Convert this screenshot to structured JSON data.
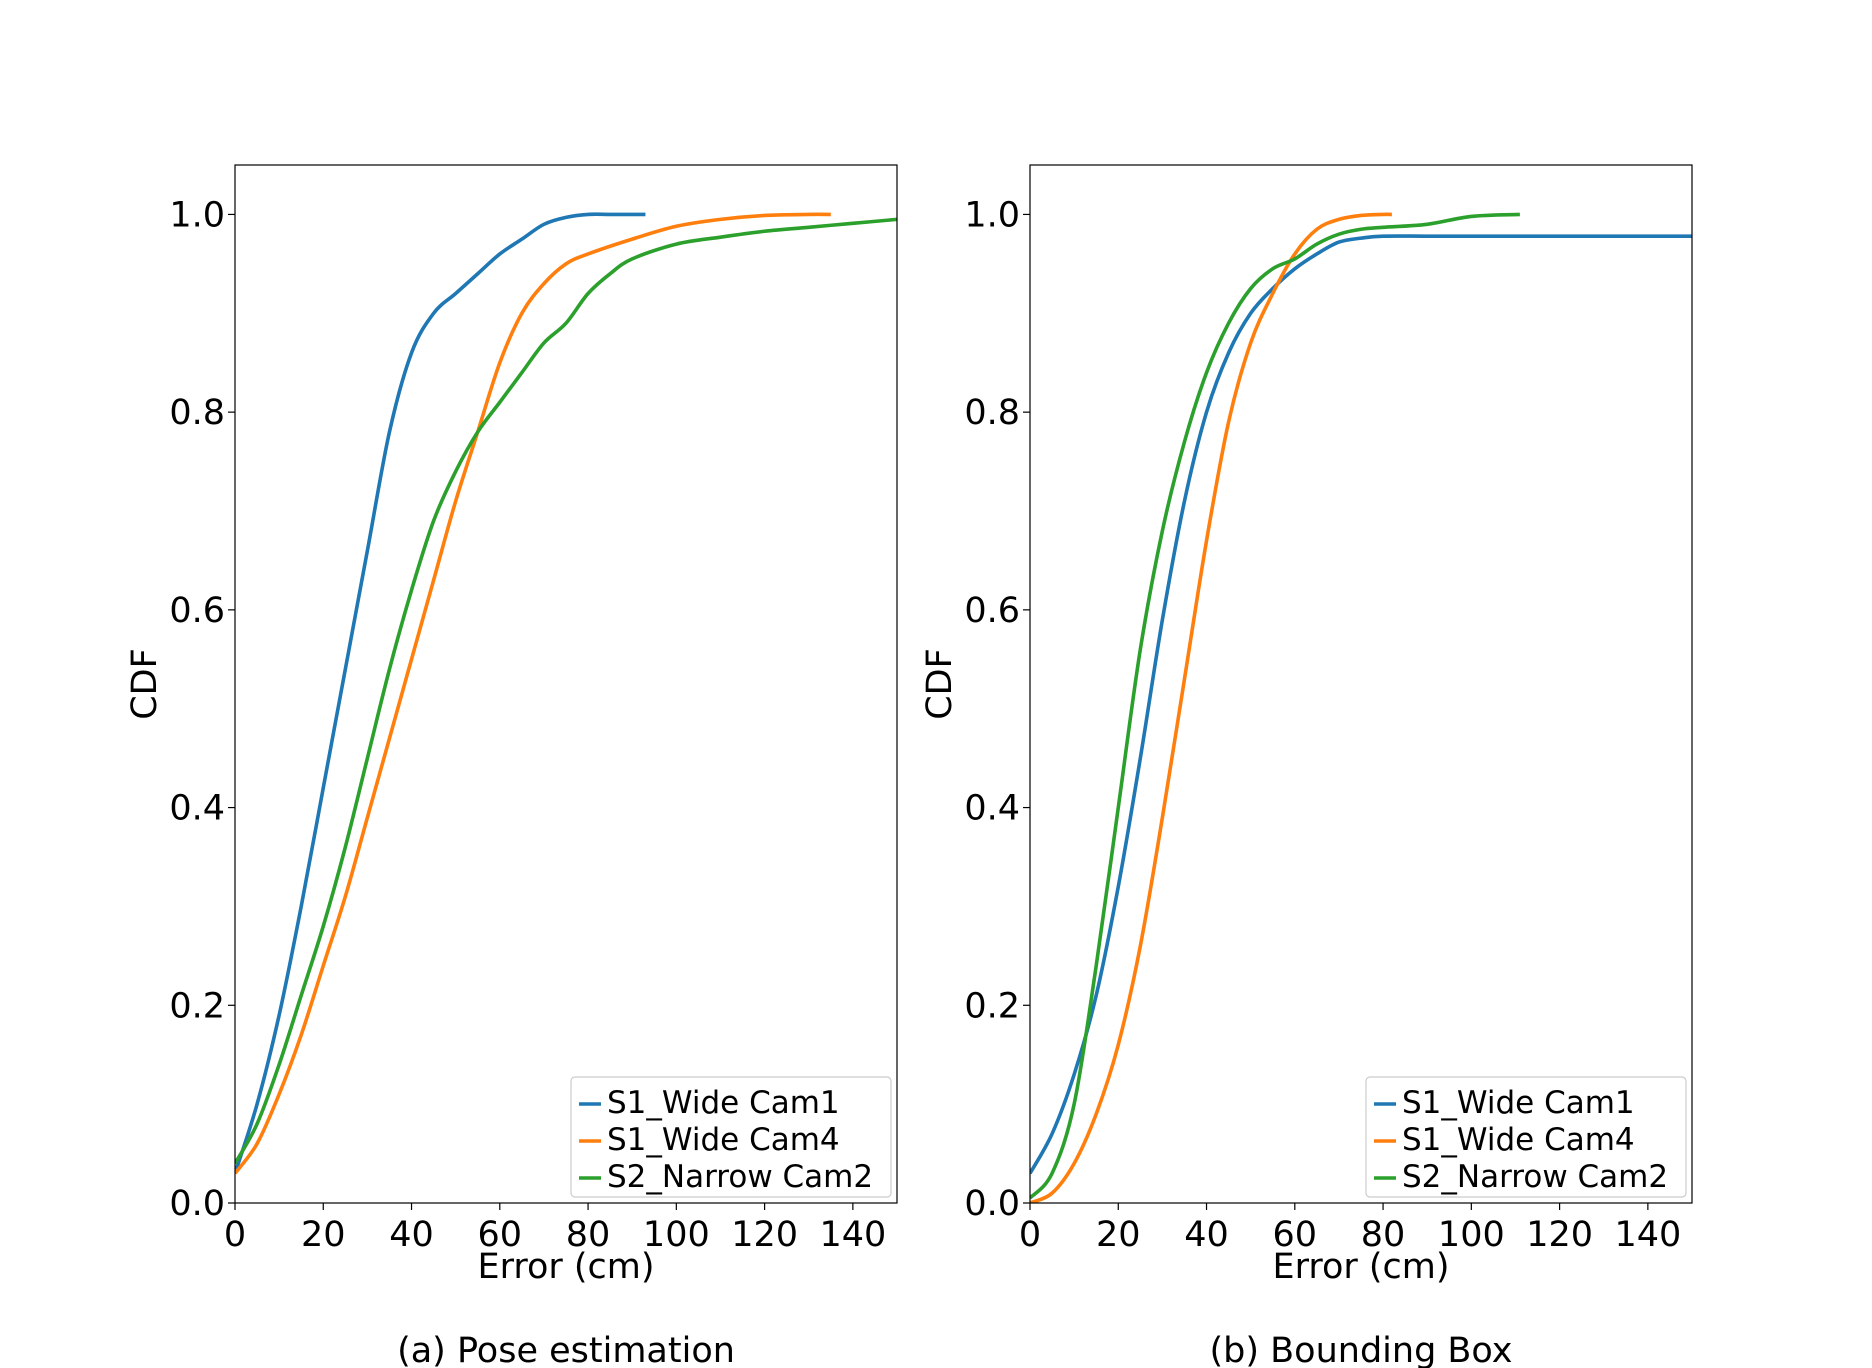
{
  "chart_data": [
    {
      "type": "line",
      "title": "",
      "caption": "(a) Pose estimation",
      "xlabel": "Error (cm)",
      "ylabel": "CDF",
      "xlim": [
        0,
        150
      ],
      "ylim": [
        0,
        1.05
      ],
      "xticks": [
        0,
        20,
        40,
        60,
        80,
        100,
        120,
        140
      ],
      "yticks": [
        0.0,
        0.2,
        0.4,
        0.6,
        0.8,
        1.0
      ],
      "xtick_labels": [
        "0",
        "20",
        "40",
        "60",
        "80",
        "100",
        "120",
        "140"
      ],
      "ytick_labels": [
        "0.0",
        "0.2",
        "0.4",
        "0.6",
        "0.8",
        "1.0"
      ],
      "grid": false,
      "legend_position": "bottom-right",
      "series": [
        {
          "name": "S1_Wide Cam1",
          "color": "#1f77b4",
          "x": [
            0,
            5,
            10,
            15,
            20,
            25,
            30,
            35,
            40,
            45,
            50,
            55,
            60,
            65,
            70,
            75,
            80,
            85,
            90,
            93
          ],
          "y": [
            0.03,
            0.1,
            0.19,
            0.3,
            0.42,
            0.54,
            0.66,
            0.78,
            0.86,
            0.9,
            0.92,
            0.94,
            0.96,
            0.975,
            0.99,
            0.997,
            1.0,
            1.0,
            1.0,
            1.0
          ]
        },
        {
          "name": "S1_Wide Cam4",
          "color": "#ff7f0e",
          "x": [
            0,
            5,
            10,
            15,
            20,
            25,
            30,
            35,
            40,
            45,
            50,
            55,
            60,
            65,
            70,
            75,
            80,
            90,
            100,
            110,
            120,
            130,
            135
          ],
          "y": [
            0.03,
            0.06,
            0.11,
            0.17,
            0.24,
            0.31,
            0.39,
            0.47,
            0.55,
            0.63,
            0.71,
            0.78,
            0.85,
            0.9,
            0.93,
            0.95,
            0.96,
            0.975,
            0.988,
            0.995,
            0.999,
            1.0,
            1.0
          ]
        },
        {
          "name": "S2_Narrow Cam2",
          "color": "#2ca02c",
          "x": [
            0,
            5,
            10,
            15,
            20,
            25,
            30,
            35,
            40,
            45,
            50,
            55,
            60,
            65,
            70,
            75,
            80,
            85,
            90,
            100,
            110,
            120,
            130,
            140,
            150
          ],
          "y": [
            0.04,
            0.08,
            0.14,
            0.21,
            0.28,
            0.36,
            0.45,
            0.54,
            0.62,
            0.69,
            0.74,
            0.78,
            0.81,
            0.84,
            0.87,
            0.89,
            0.92,
            0.94,
            0.955,
            0.97,
            0.977,
            0.983,
            0.987,
            0.991,
            0.995
          ]
        }
      ]
    },
    {
      "type": "line",
      "title": "",
      "caption": "(b) Bounding Box",
      "xlabel": "Error (cm)",
      "ylabel": "CDF",
      "xlim": [
        0,
        150
      ],
      "ylim": [
        0,
        1.05
      ],
      "xticks": [
        0,
        20,
        40,
        60,
        80,
        100,
        120,
        140
      ],
      "yticks": [
        0.0,
        0.2,
        0.4,
        0.6,
        0.8,
        1.0
      ],
      "xtick_labels": [
        "0",
        "20",
        "40",
        "60",
        "80",
        "100",
        "120",
        "140"
      ],
      "ytick_labels": [
        "0.0",
        "0.2",
        "0.4",
        "0.6",
        "0.8",
        "1.0"
      ],
      "grid": false,
      "legend_position": "bottom-right",
      "series": [
        {
          "name": "S1_Wide Cam1",
          "color": "#1f77b4",
          "x": [
            0,
            5,
            10,
            15,
            20,
            25,
            30,
            35,
            40,
            45,
            50,
            55,
            60,
            65,
            70,
            75,
            80,
            90,
            100,
            120,
            150
          ],
          "y": [
            0.03,
            0.07,
            0.13,
            0.21,
            0.32,
            0.45,
            0.59,
            0.71,
            0.8,
            0.86,
            0.9,
            0.925,
            0.945,
            0.96,
            0.972,
            0.976,
            0.978,
            0.978,
            0.978,
            0.978,
            0.978
          ]
        },
        {
          "name": "S1_Wide Cam4",
          "color": "#ff7f0e",
          "x": [
            0,
            5,
            10,
            15,
            20,
            25,
            30,
            35,
            40,
            45,
            50,
            55,
            60,
            65,
            70,
            75,
            80,
            82
          ],
          "y": [
            0.0,
            0.01,
            0.04,
            0.09,
            0.16,
            0.26,
            0.39,
            0.53,
            0.67,
            0.79,
            0.87,
            0.92,
            0.96,
            0.985,
            0.995,
            0.999,
            1.0,
            1.0
          ]
        },
        {
          "name": "S2_Narrow Cam2",
          "color": "#2ca02c",
          "x": [
            0,
            5,
            10,
            15,
            20,
            25,
            30,
            35,
            40,
            45,
            50,
            55,
            60,
            65,
            70,
            75,
            80,
            90,
            100,
            111
          ],
          "y": [
            0.005,
            0.03,
            0.1,
            0.24,
            0.4,
            0.56,
            0.68,
            0.77,
            0.84,
            0.89,
            0.925,
            0.945,
            0.955,
            0.97,
            0.98,
            0.985,
            0.987,
            0.99,
            0.998,
            1.0
          ]
        }
      ]
    }
  ]
}
